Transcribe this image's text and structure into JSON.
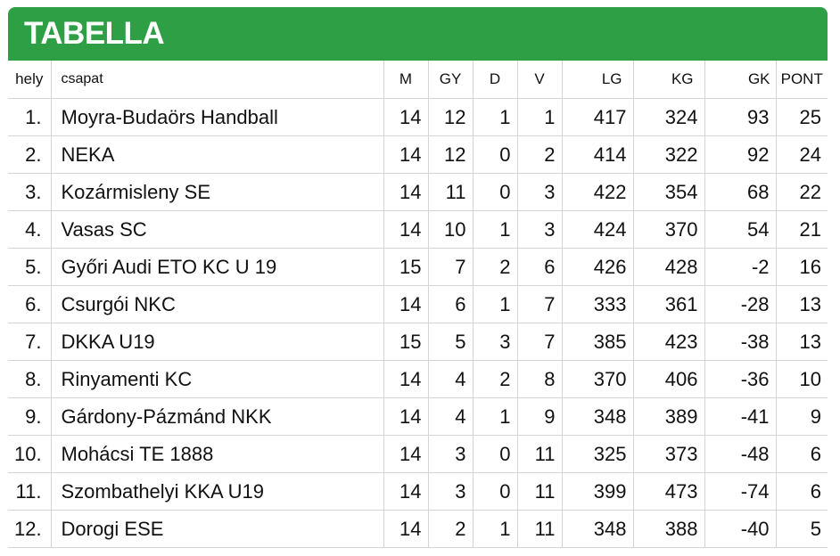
{
  "title": "TABELLA",
  "columns": {
    "hely": "hely",
    "csapat": "csapat",
    "m": "M",
    "gy": "GY",
    "d": "D",
    "v": "V",
    "lg": "LG",
    "kg": "KG",
    "gk": "GK",
    "pont": "PONT"
  },
  "rows": [
    {
      "hely": "1.",
      "team": "Moyra-Budaörs Handball",
      "m": "14",
      "gy": "12",
      "d": "1",
      "v": "1",
      "lg": "417",
      "kg": "324",
      "gk": "93",
      "pont": "25"
    },
    {
      "hely": "2.",
      "team": "NEKA",
      "m": "14",
      "gy": "12",
      "d": "0",
      "v": "2",
      "lg": "414",
      "kg": "322",
      "gk": "92",
      "pont": "24"
    },
    {
      "hely": "3.",
      "team": "Kozármisleny SE",
      "m": "14",
      "gy": "11",
      "d": "0",
      "v": "3",
      "lg": "422",
      "kg": "354",
      "gk": "68",
      "pont": "22"
    },
    {
      "hely": "4.",
      "team": "Vasas SC",
      "m": "14",
      "gy": "10",
      "d": "1",
      "v": "3",
      "lg": "424",
      "kg": "370",
      "gk": "54",
      "pont": "21"
    },
    {
      "hely": "5.",
      "team": "Győri Audi ETO KC U 19",
      "m": "15",
      "gy": "7",
      "d": "2",
      "v": "6",
      "lg": "426",
      "kg": "428",
      "gk": "-2",
      "pont": "16"
    },
    {
      "hely": "6.",
      "team": "Csurgói NKC",
      "m": "14",
      "gy": "6",
      "d": "1",
      "v": "7",
      "lg": "333",
      "kg": "361",
      "gk": "-28",
      "pont": "13"
    },
    {
      "hely": "7.",
      "team": "DKKA U19",
      "m": "15",
      "gy": "5",
      "d": "3",
      "v": "7",
      "lg": "385",
      "kg": "423",
      "gk": "-38",
      "pont": "13"
    },
    {
      "hely": "8.",
      "team": "Rinyamenti KC",
      "m": "14",
      "gy": "4",
      "d": "2",
      "v": "8",
      "lg": "370",
      "kg": "406",
      "gk": "-36",
      "pont": "10"
    },
    {
      "hely": "9.",
      "team": "Gárdony-Pázmánd NKK",
      "m": "14",
      "gy": "4",
      "d": "1",
      "v": "9",
      "lg": "348",
      "kg": "389",
      "gk": "-41",
      "pont": "9"
    },
    {
      "hely": "10.",
      "team": "Mohácsi TE 1888",
      "m": "14",
      "gy": "3",
      "d": "0",
      "v": "11",
      "lg": "325",
      "kg": "373",
      "gk": "-48",
      "pont": "6"
    },
    {
      "hely": "11.",
      "team": "Szombathelyi KKA U19",
      "m": "14",
      "gy": "3",
      "d": "0",
      "v": "11",
      "lg": "399",
      "kg": "473",
      "gk": "-74",
      "pont": "6"
    },
    {
      "hely": "12.",
      "team": "Dorogi ESE",
      "m": "14",
      "gy": "2",
      "d": "1",
      "v": "11",
      "lg": "348",
      "kg": "388",
      "gk": "-40",
      "pont": "5"
    }
  ]
}
